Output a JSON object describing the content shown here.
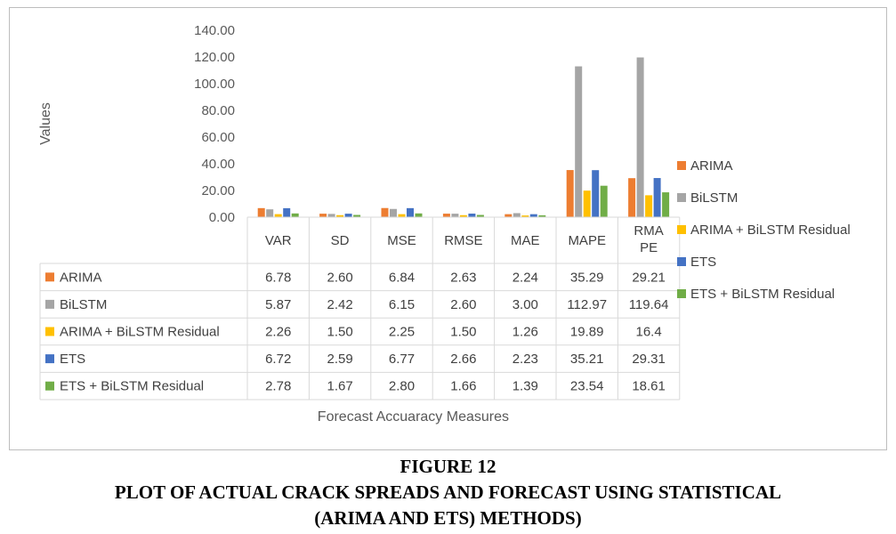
{
  "chart_data": {
    "type": "bar",
    "categories": [
      "VAR",
      "SD",
      "MSE",
      "RMSE",
      "MAE",
      "MAPE",
      "RMAPE"
    ],
    "category_labels": [
      [
        "VAR"
      ],
      [
        "SD"
      ],
      [
        "MSE"
      ],
      [
        "RMSE"
      ],
      [
        "MAE"
      ],
      [
        "MAPE"
      ],
      [
        "RMA",
        "PE"
      ]
    ],
    "series": [
      {
        "name": "ARIMA",
        "color": "#ED7D31",
        "values": [
          6.78,
          2.6,
          6.84,
          2.63,
          2.24,
          35.29,
          29.21
        ],
        "labels": [
          "6.78",
          "2.60",
          "6.84",
          "2.63",
          "2.24",
          "35.29",
          "29.21"
        ]
      },
      {
        "name": "BiLSTM",
        "color": "#A5A5A5",
        "values": [
          5.87,
          2.42,
          6.15,
          2.6,
          3.0,
          112.97,
          119.64
        ],
        "labels": [
          "5.87",
          "2.42",
          "6.15",
          "2.60",
          "3.00",
          "112.97",
          "119.64"
        ]
      },
      {
        "name": "ARIMA + BiLSTM Residual",
        "color": "#FFC000",
        "values": [
          2.26,
          1.5,
          2.25,
          1.5,
          1.26,
          19.89,
          16.4
        ],
        "labels": [
          "2.26",
          "1.50",
          "2.25",
          "1.50",
          "1.26",
          "19.89",
          "16.4"
        ]
      },
      {
        "name": "ETS",
        "color": "#4472C4",
        "values": [
          6.72,
          2.59,
          6.77,
          2.66,
          2.23,
          35.21,
          29.31
        ],
        "labels": [
          "6.72",
          "2.59",
          "6.77",
          "2.66",
          "2.23",
          "35.21",
          "29.31"
        ]
      },
      {
        "name": "ETS + BiLSTM Residual",
        "color": "#70AD47",
        "values": [
          2.78,
          1.67,
          2.8,
          1.66,
          1.39,
          23.54,
          18.61
        ],
        "labels": [
          "2.78",
          "1.67",
          "2.80",
          "1.66",
          "1.39",
          "23.54",
          "18.61"
        ]
      }
    ],
    "ylabel": "Values",
    "xlabel": "Forecast Accuaracy Measures",
    "ylim": [
      0,
      140
    ],
    "yticks": [
      "0.00",
      "20.00",
      "40.00",
      "60.00",
      "80.00",
      "100.00",
      "120.00",
      "140.00"
    ],
    "grid": false,
    "legend_position": "right",
    "data_table": true
  },
  "caption": {
    "figure": "FIGURE 12",
    "line1": "PLOT OF ACTUAL CRACK SPREADS AND FORECAST USING STATISTICAL",
    "line2": "(ARIMA AND ETS) METHODS)"
  }
}
